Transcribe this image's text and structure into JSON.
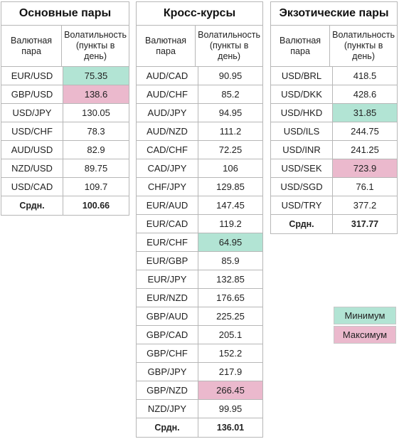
{
  "header": {
    "pair_label": "Валютная пара",
    "volatility_label": "Волатильность (пункты в день)"
  },
  "tables": [
    {
      "title": "Основные пары",
      "rows": [
        {
          "pair": "EUR/USD",
          "value": "75.35",
          "mark": "min"
        },
        {
          "pair": "GBP/USD",
          "value": "138.6",
          "mark": "max"
        },
        {
          "pair": "USD/JPY",
          "value": "130.05",
          "mark": ""
        },
        {
          "pair": "USD/CHF",
          "value": "78.3",
          "mark": ""
        },
        {
          "pair": "AUD/USD",
          "value": "82.9",
          "mark": ""
        },
        {
          "pair": "NZD/USD",
          "value": "89.75",
          "mark": ""
        },
        {
          "pair": "USD/CAD",
          "value": "109.7",
          "mark": ""
        }
      ],
      "avg_label": "Срдн.",
      "avg_value": "100.66"
    },
    {
      "title": "Кросс-курсы",
      "rows": [
        {
          "pair": "AUD/CAD",
          "value": "90.95",
          "mark": ""
        },
        {
          "pair": "AUD/CHF",
          "value": "85.2",
          "mark": ""
        },
        {
          "pair": "AUD/JPY",
          "value": "94.95",
          "mark": ""
        },
        {
          "pair": "AUD/NZD",
          "value": "111.2",
          "mark": ""
        },
        {
          "pair": "CAD/CHF",
          "value": "72.25",
          "mark": ""
        },
        {
          "pair": "CAD/JPY",
          "value": "106",
          "mark": ""
        },
        {
          "pair": "CHF/JPY",
          "value": "129.85",
          "mark": ""
        },
        {
          "pair": "EUR/AUD",
          "value": "147.45",
          "mark": ""
        },
        {
          "pair": "EUR/CAD",
          "value": "119.2",
          "mark": ""
        },
        {
          "pair": "EUR/CHF",
          "value": "64.95",
          "mark": "min"
        },
        {
          "pair": "EUR/GBP",
          "value": "85.9",
          "mark": ""
        },
        {
          "pair": "EUR/JPY",
          "value": "132.85",
          "mark": ""
        },
        {
          "pair": "EUR/NZD",
          "value": "176.65",
          "mark": ""
        },
        {
          "pair": "GBP/AUD",
          "value": "225.25",
          "mark": ""
        },
        {
          "pair": "GBP/CAD",
          "value": "205.1",
          "mark": ""
        },
        {
          "pair": "GBP/CHF",
          "value": "152.2",
          "mark": ""
        },
        {
          "pair": "GBP/JPY",
          "value": "217.9",
          "mark": ""
        },
        {
          "pair": "GBP/NZD",
          "value": "266.45",
          "mark": "max"
        },
        {
          "pair": "NZD/JPY",
          "value": "99.95",
          "mark": ""
        }
      ],
      "avg_label": "Срдн.",
      "avg_value": "136.01"
    },
    {
      "title": "Экзотические пары",
      "rows": [
        {
          "pair": "USD/BRL",
          "value": "418.5",
          "mark": ""
        },
        {
          "pair": "USD/DKK",
          "value": "428.6",
          "mark": ""
        },
        {
          "pair": "USD/HKD",
          "value": "31.85",
          "mark": "min"
        },
        {
          "pair": "USD/ILS",
          "value": "244.75",
          "mark": ""
        },
        {
          "pair": "USD/INR",
          "value": "241.25",
          "mark": ""
        },
        {
          "pair": "USD/SEK",
          "value": "723.9",
          "mark": "max"
        },
        {
          "pair": "USD/SGD",
          "value": "76.1",
          "mark": ""
        },
        {
          "pair": "USD/TRY",
          "value": "377.2",
          "mark": ""
        }
      ],
      "avg_label": "Срдн.",
      "avg_value": "317.77"
    }
  ],
  "legend": {
    "min_label": "Минимум",
    "max_label": "Максимум"
  },
  "colors": {
    "min": "#b2e4d4",
    "max": "#ebb9cd",
    "border": "#b7b7b7"
  }
}
